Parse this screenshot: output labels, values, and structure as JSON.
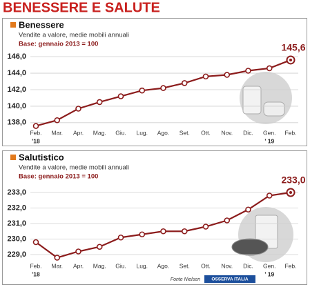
{
  "header": {
    "title": "BENESSERE E SALUTE"
  },
  "chart_data": [
    {
      "type": "line",
      "title": "Benessere",
      "subtitle": "Vendite a valore, medie mobili annuali",
      "note": "Base: gennaio 2013 = 100",
      "categories": [
        "Feb.",
        "Mar.",
        "Apr.",
        "Mag.",
        "Giu.",
        "Lug.",
        "Ago.",
        "Set.",
        "Ott.",
        "Nov.",
        "Dic.",
        "Gen.",
        "Feb."
      ],
      "category_years": [
        "'18",
        null,
        null,
        null,
        null,
        null,
        null,
        null,
        null,
        null,
        null,
        "' 19",
        null
      ],
      "values": [
        137.6,
        138.3,
        139.7,
        140.5,
        141.2,
        141.9,
        142.2,
        142.8,
        143.6,
        143.8,
        144.3,
        144.6,
        145.6
      ],
      "value_labels": [
        null,
        null,
        null,
        null,
        null,
        null,
        null,
        null,
        null,
        null,
        null,
        null,
        "145,6"
      ],
      "color": "#8c1c1c",
      "ylim": [
        137.4,
        146.6
      ],
      "yticks": [
        {
          "value": 138,
          "label": "138,0"
        },
        {
          "value": 140,
          "label": "140,0"
        },
        {
          "value": 142,
          "label": "142,0"
        },
        {
          "value": 144,
          "label": "144,0"
        },
        {
          "value": 146,
          "label": "146,0"
        }
      ],
      "grid": true
    },
    {
      "type": "line",
      "title": "Salutistico",
      "subtitle": "Vendite a valore, medie mobili annuali",
      "note": "Base: gennaio 2013 = 100",
      "categories": [
        "Feb.",
        "Mar.",
        "Apr.",
        "Mag.",
        "Giu.",
        "Lug.",
        "Ago.",
        "Set.",
        "Ott.",
        "Nov.",
        "Dic.",
        "Gen.",
        "Feb."
      ],
      "category_years": [
        "'18",
        null,
        null,
        null,
        null,
        null,
        null,
        null,
        null,
        null,
        null,
        "' 19",
        null
      ],
      "values": [
        229.8,
        228.8,
        229.2,
        229.5,
        230.1,
        230.3,
        230.5,
        230.5,
        230.8,
        231.2,
        231.9,
        232.8,
        233.0
      ],
      "value_labels": [
        null,
        null,
        null,
        null,
        null,
        null,
        null,
        null,
        null,
        null,
        null,
        null,
        "233,0"
      ],
      "color": "#8c1c1c",
      "ylim": [
        228.6,
        233.4
      ],
      "yticks": [
        {
          "value": 229,
          "label": "229,0"
        },
        {
          "value": 230,
          "label": "230,0"
        },
        {
          "value": 231,
          "label": "231,0"
        },
        {
          "value": 232,
          "label": "232,0"
        },
        {
          "value": 233,
          "label": "233,0"
        }
      ],
      "grid": true
    }
  ],
  "source": {
    "text": "Fonte Nielsen",
    "logo": "OSSERVA ITALIA"
  }
}
